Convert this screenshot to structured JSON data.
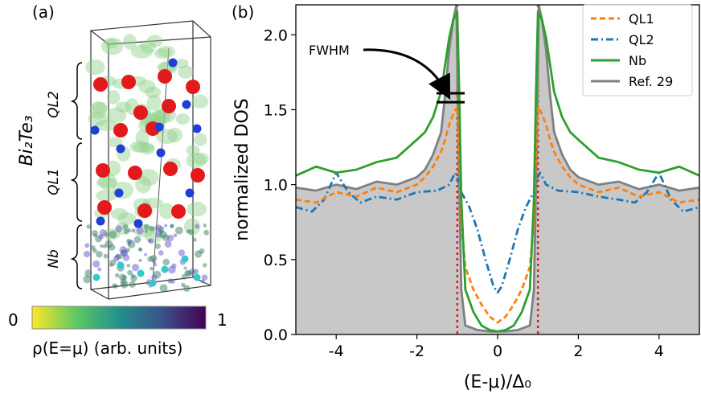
{
  "panel_a": {
    "label": "(a)",
    "material_label": "Bi₂Te₃",
    "layer_labels": [
      "QL2",
      "QL1",
      "Nb"
    ],
    "colorbar": {
      "min_label": "0",
      "max_label": "1",
      "label": "ρ(E=μ) (arb. units)",
      "colormap": [
        "#fde725",
        "#5ec962",
        "#21918c",
        "#3b528b",
        "#440154"
      ]
    },
    "atom_colors": {
      "Bi": "#e31a1c",
      "Te": "#1f3fd6",
      "Nb": "#35c9c9",
      "density": "#8fd18a"
    }
  },
  "panel_b": {
    "label": "(b)",
    "annotation": "FWHM"
  },
  "chart_data": {
    "type": "line",
    "title": "",
    "xlabel": "(E-μ)/Δ₀",
    "ylabel": "normalized DOS",
    "xlim": [
      -5,
      5
    ],
    "ylim": [
      0,
      2.2
    ],
    "xticks": [
      "-4",
      "-2",
      "0",
      "2",
      "4"
    ],
    "yticks": [
      "0.0",
      "0.5",
      "1.0",
      "1.5",
      "2.0"
    ],
    "legend_position": "top-right",
    "vlines": [
      -1,
      1
    ],
    "vline_color": "#e31a1c",
    "fwhm_marks": [
      1.55,
      1.61
    ],
    "series": [
      {
        "name": "QL1",
        "color": "#ff7f0e",
        "style": "dashed",
        "x": [
          -5,
          -4.5,
          -4,
          -3.5,
          -3,
          -2.5,
          -2,
          -1.8,
          -1.6,
          -1.4,
          -1.3,
          -1.2,
          -1.1,
          -1.0,
          -0.95,
          -0.9,
          -0.8,
          -0.6,
          -0.4,
          -0.2,
          0,
          0.2,
          0.4,
          0.6,
          0.8,
          0.9,
          0.95,
          1.0,
          1.1,
          1.2,
          1.3,
          1.4,
          1.6,
          1.8,
          2,
          2.5,
          3,
          3.5,
          4,
          4.5,
          5
        ],
        "y": [
          0.9,
          0.88,
          0.95,
          0.92,
          0.98,
          0.95,
          1.0,
          1.05,
          1.12,
          1.22,
          1.3,
          1.4,
          1.47,
          1.52,
          1.2,
          0.75,
          0.45,
          0.3,
          0.2,
          0.12,
          0.08,
          0.12,
          0.2,
          0.3,
          0.45,
          0.75,
          1.2,
          1.52,
          1.47,
          1.4,
          1.3,
          1.22,
          1.12,
          1.05,
          1.0,
          0.95,
          0.98,
          0.92,
          0.95,
          0.88,
          0.9
        ]
      },
      {
        "name": "QL2",
        "color": "#1f77b4",
        "style": "dashdot",
        "x": [
          -5,
          -4.6,
          -4.3,
          -4,
          -3.7,
          -3.4,
          -3,
          -2.5,
          -2,
          -1.5,
          -1.2,
          -1.05,
          -1.0,
          -0.9,
          -0.7,
          -0.5,
          -0.3,
          -0.1,
          0,
          0.1,
          0.3,
          0.5,
          0.7,
          0.9,
          1.0,
          1.05,
          1.2,
          1.5,
          2,
          2.5,
          3,
          3.4,
          3.7,
          4,
          4.3,
          4.6,
          5
        ],
        "y": [
          0.85,
          0.82,
          0.9,
          1.08,
          0.95,
          0.88,
          0.92,
          0.9,
          0.95,
          0.96,
          1.0,
          1.08,
          1.05,
          0.95,
          0.85,
          0.7,
          0.5,
          0.32,
          0.28,
          0.32,
          0.5,
          0.7,
          0.85,
          0.95,
          1.05,
          1.08,
          1.0,
          0.96,
          0.95,
          0.92,
          0.9,
          0.88,
          0.95,
          1.08,
          0.9,
          0.82,
          0.85
        ]
      },
      {
        "name": "Nb",
        "color": "#2ca02c",
        "style": "solid",
        "x": [
          -5,
          -4.5,
          -4,
          -3.5,
          -3,
          -2.5,
          -2,
          -1.8,
          -1.6,
          -1.4,
          -1.3,
          -1.2,
          -1.1,
          -1.0,
          -0.95,
          -0.9,
          -0.8,
          -0.6,
          -0.4,
          -0.2,
          0,
          0.2,
          0.4,
          0.6,
          0.8,
          0.9,
          0.95,
          1.0,
          1.1,
          1.2,
          1.3,
          1.4,
          1.6,
          1.8,
          2,
          2.5,
          3,
          3.5,
          4,
          4.5,
          5
        ],
        "y": [
          1.06,
          1.12,
          1.08,
          1.1,
          1.15,
          1.18,
          1.3,
          1.35,
          1.45,
          1.62,
          1.8,
          1.98,
          2.1,
          2.15,
          1.6,
          0.9,
          0.3,
          0.15,
          0.06,
          0.03,
          0.02,
          0.03,
          0.06,
          0.15,
          0.3,
          0.9,
          1.6,
          2.15,
          2.1,
          1.98,
          1.8,
          1.62,
          1.45,
          1.35,
          1.3,
          1.18,
          1.15,
          1.1,
          1.08,
          1.12,
          1.06
        ]
      },
      {
        "name": "Ref. 29",
        "color": "#808080",
        "style": "solid",
        "fill": "#c8c8c8",
        "x": [
          -5,
          -4.5,
          -4,
          -3.5,
          -3,
          -2.5,
          -2,
          -1.8,
          -1.6,
          -1.4,
          -1.3,
          -1.2,
          -1.1,
          -1.02,
          -0.98,
          -0.9,
          -0.8,
          -0.5,
          -0.2,
          0,
          0.2,
          0.5,
          0.8,
          0.9,
          0.98,
          1.02,
          1.1,
          1.2,
          1.3,
          1.4,
          1.6,
          1.8,
          2,
          2.5,
          3,
          3.5,
          4,
          4.5,
          5
        ],
        "y": [
          0.98,
          0.96,
          1.0,
          0.97,
          1.02,
          1.0,
          1.05,
          1.1,
          1.2,
          1.35,
          1.6,
          1.9,
          2.1,
          2.2,
          1.4,
          0.3,
          0.06,
          0.03,
          0.02,
          0.02,
          0.02,
          0.03,
          0.06,
          0.3,
          1.4,
          2.2,
          2.1,
          1.9,
          1.6,
          1.35,
          1.2,
          1.1,
          1.05,
          1.0,
          1.02,
          0.97,
          1.0,
          0.96,
          0.98
        ]
      }
    ]
  }
}
